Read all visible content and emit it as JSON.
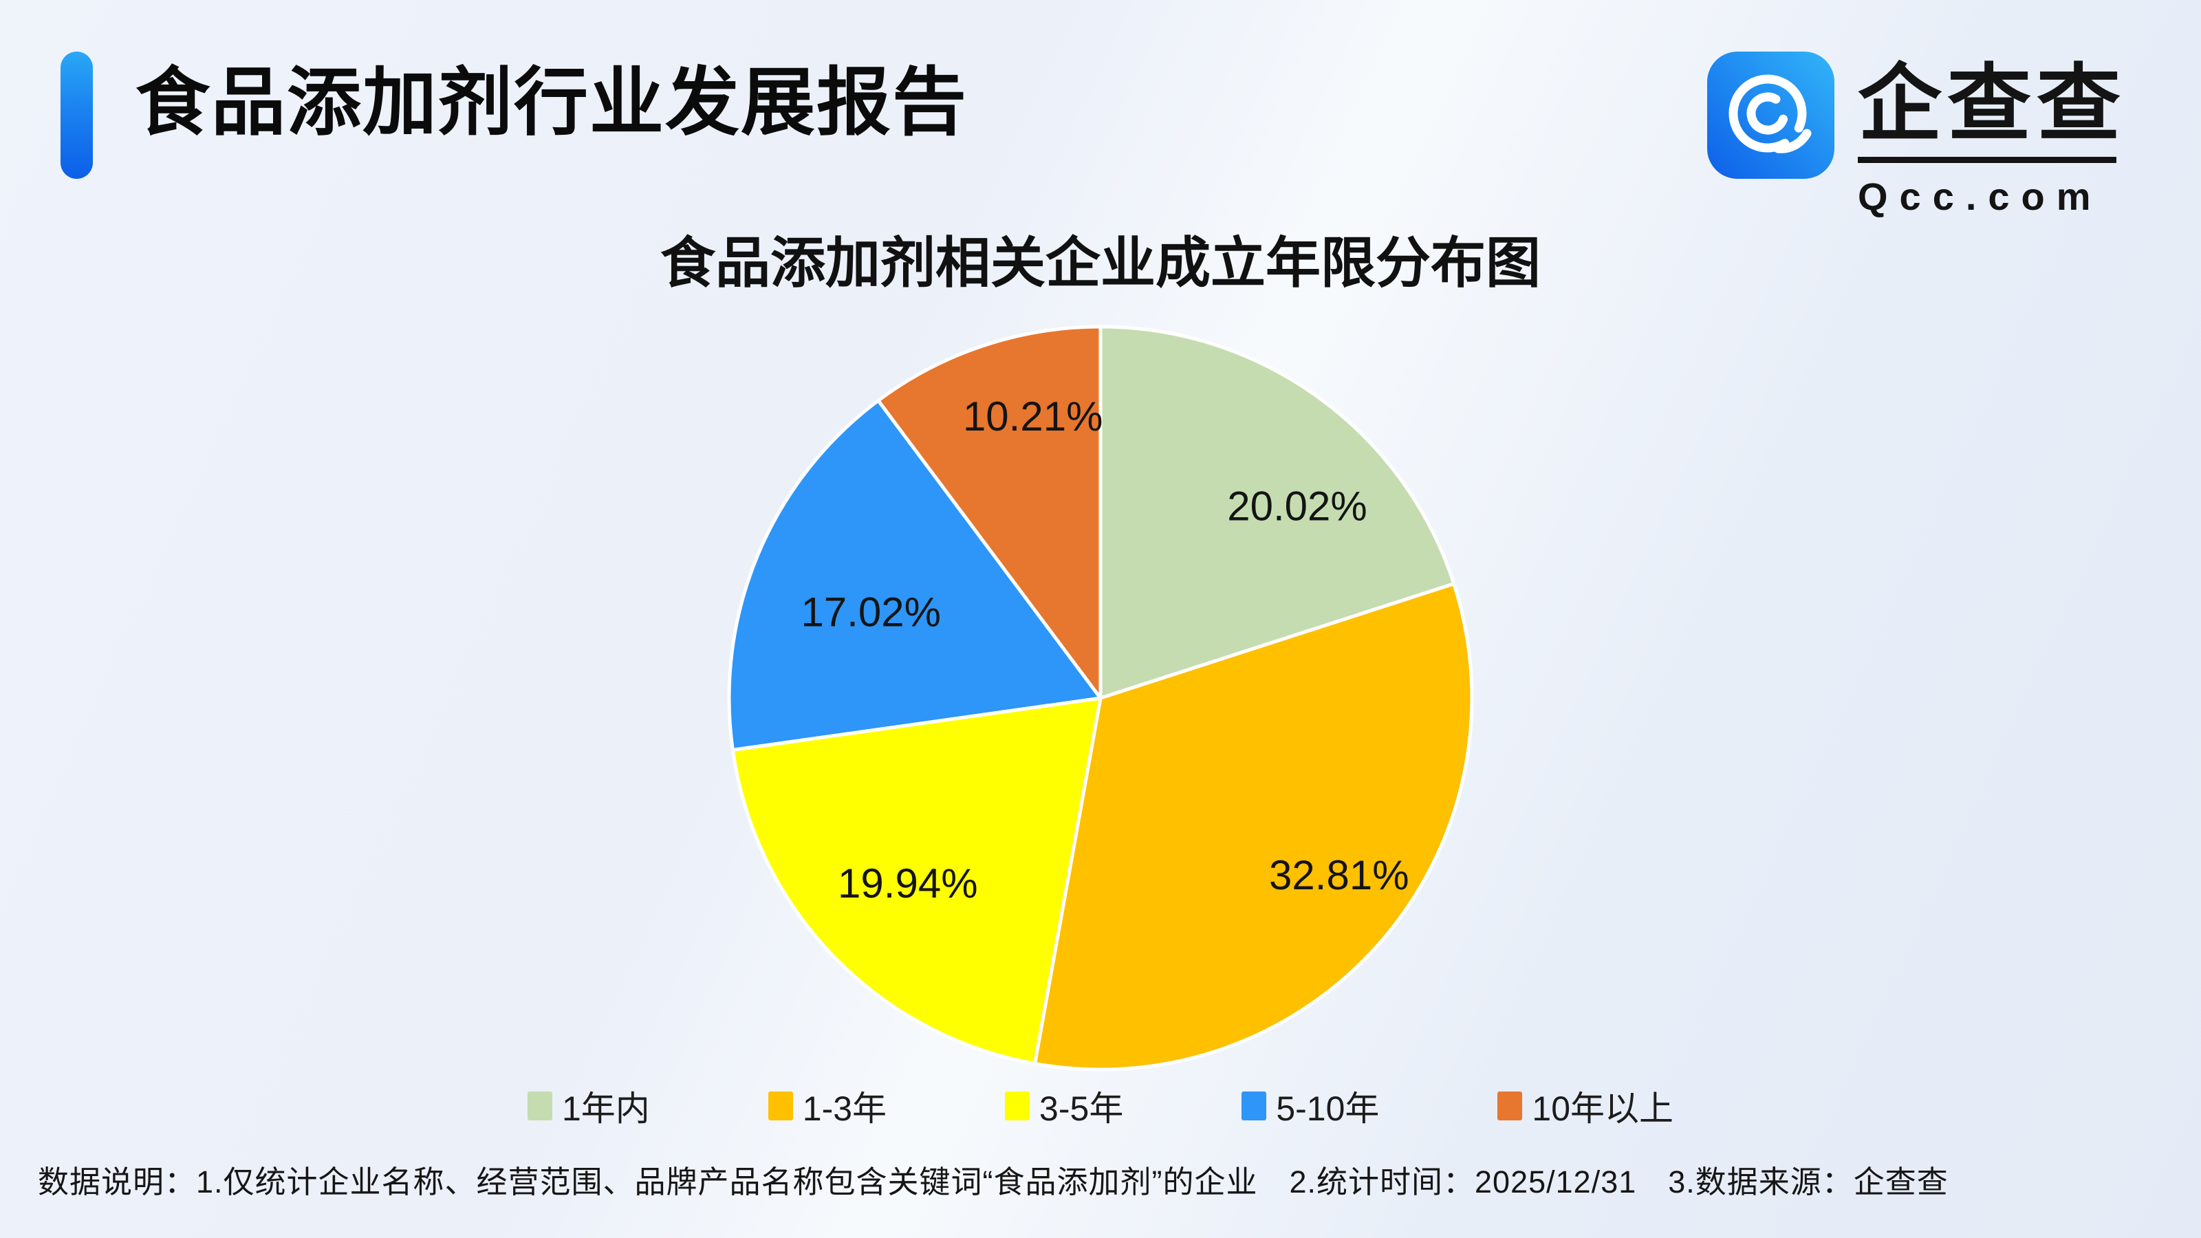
{
  "header": {
    "title": "食品添加剂行业发展报告"
  },
  "logo": {
    "brand_name": "企查查",
    "domain": "Qcc.com",
    "tile_gradient_start": "#0d5fe9",
    "tile_gradient_end": "#31b5f9"
  },
  "chart_data": {
    "type": "pie",
    "title": "食品添加剂相关企业成立年限分布图",
    "start_angle_deg": 0,
    "direction": "clockwise",
    "legend_position": "bottom",
    "slices": [
      {
        "label": "1年内",
        "value_pct": 20.02,
        "display": "20.02%",
        "color": "#c5dcb0"
      },
      {
        "label": "1-3年",
        "value_pct": 32.81,
        "display": "32.81%",
        "color": "#ffc000"
      },
      {
        "label": "3-5年",
        "value_pct": 19.94,
        "display": "19.94%",
        "color": "#ffff00"
      },
      {
        "label": "5-10年",
        "value_pct": 17.02,
        "display": "17.02%",
        "color": "#2d96f8"
      },
      {
        "label": "10年以上",
        "value_pct": 10.21,
        "display": "10.21%",
        "color": "#e7762e"
      }
    ]
  },
  "footer": {
    "note": "数据说明：1.仅统计企业名称、经营范围、品牌产品名称包含关键词“食品添加剂”的企业　2.统计时间：2025/12/31　3.数据来源：企查查"
  }
}
